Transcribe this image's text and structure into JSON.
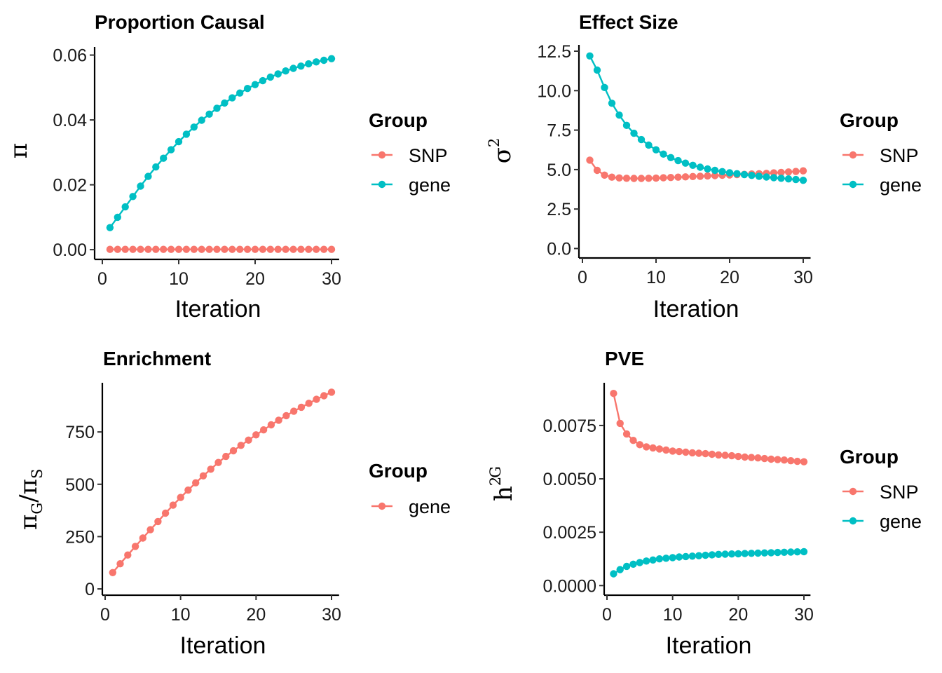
{
  "colors": {
    "SNP": "#F8766D",
    "gene": "#00BFC4"
  },
  "chart_data": [
    {
      "id": "proportion",
      "type": "line",
      "title": "Proportion Causal",
      "xlabel": "Iteration",
      "ylabel": "π",
      "xlim": [
        0,
        31
      ],
      "ylim": [
        -0.003,
        0.0625
      ],
      "xticks": [
        0,
        10,
        20,
        30
      ],
      "xtick_labels": [
        "0",
        "10",
        "20",
        "30"
      ],
      "yticks": [
        0,
        0.02,
        0.04,
        0.06
      ],
      "ytick_labels": [
        "0.00",
        "0.02",
        "0.04",
        "0.06"
      ],
      "legend": {
        "title": "Group",
        "position": "right",
        "entries": [
          "SNP",
          "gene"
        ]
      },
      "x": [
        1,
        2,
        3,
        4,
        5,
        6,
        7,
        8,
        9,
        10,
        11,
        12,
        13,
        14,
        15,
        16,
        17,
        18,
        19,
        20,
        21,
        22,
        23,
        24,
        25,
        26,
        27,
        28,
        29,
        30
      ],
      "series": [
        {
          "name": "SNP",
          "color_key": "SNP",
          "values": [
            0.0001,
            0.0001,
            0.0001,
            0.0001,
            0.0001,
            0.0001,
            0.0001,
            0.0001,
            0.0001,
            0.0001,
            0.0001,
            0.0001,
            0.0001,
            0.0001,
            0.0001,
            0.0001,
            0.0001,
            0.0001,
            0.0001,
            0.0001,
            0.0001,
            0.0001,
            0.0001,
            0.0001,
            0.0001,
            0.0001,
            0.0001,
            0.0001,
            0.0001,
            0.0001
          ]
        },
        {
          "name": "gene",
          "color_key": "gene",
          "values": [
            0.0068,
            0.01,
            0.0132,
            0.0164,
            0.0196,
            0.0226,
            0.0255,
            0.0282,
            0.0308,
            0.0333,
            0.0356,
            0.0378,
            0.0399,
            0.0418,
            0.0436,
            0.0452,
            0.0468,
            0.0483,
            0.0497,
            0.0509,
            0.0521,
            0.0532,
            0.0542,
            0.0551,
            0.0559,
            0.0566,
            0.0573,
            0.0579,
            0.0584,
            0.0589
          ]
        }
      ]
    },
    {
      "id": "effect",
      "type": "line",
      "title": "Effect Size",
      "xlabel": "Iteration",
      "ylabel": "σ",
      "ylabel_sup": "2",
      "xlim": [
        0,
        31
      ],
      "ylim": [
        -0.6,
        12.9
      ],
      "xticks": [
        0,
        10,
        20,
        30
      ],
      "xtick_labels": [
        "0",
        "10",
        "20",
        "30"
      ],
      "yticks": [
        0,
        2.5,
        5,
        7.5,
        10,
        12.5
      ],
      "ytick_labels": [
        "0.0",
        "2.5",
        "5.0",
        "7.5",
        "10.0",
        "12.5"
      ],
      "legend": {
        "title": "Group",
        "position": "right",
        "entries": [
          "SNP",
          "gene"
        ]
      },
      "x": [
        1,
        2,
        3,
        4,
        5,
        6,
        7,
        8,
        9,
        10,
        11,
        12,
        13,
        14,
        15,
        16,
        17,
        18,
        19,
        20,
        21,
        22,
        23,
        24,
        25,
        26,
        27,
        28,
        29,
        30
      ],
      "series": [
        {
          "name": "SNP",
          "color_key": "SNP",
          "values": [
            5.6,
            4.95,
            4.65,
            4.52,
            4.47,
            4.45,
            4.44,
            4.44,
            4.45,
            4.46,
            4.48,
            4.5,
            4.52,
            4.54,
            4.56,
            4.58,
            4.6,
            4.62,
            4.64,
            4.66,
            4.68,
            4.7,
            4.72,
            4.74,
            4.76,
            4.79,
            4.82,
            4.85,
            4.88,
            4.92
          ]
        },
        {
          "name": "gene",
          "color_key": "gene",
          "values": [
            12.2,
            11.3,
            10.2,
            9.2,
            8.45,
            7.8,
            7.3,
            6.9,
            6.55,
            6.25,
            5.98,
            5.76,
            5.57,
            5.41,
            5.27,
            5.15,
            5.04,
            4.95,
            4.87,
            4.8,
            4.74,
            4.68,
            4.63,
            4.58,
            4.53,
            4.49,
            4.45,
            4.41,
            4.37,
            4.32
          ]
        }
      ]
    },
    {
      "id": "enrichment",
      "type": "line",
      "title": "Enrichment",
      "xlabel": "Iteration",
      "ylabel_num": "π",
      "ylabel_num_sub": "G",
      "ylabel_den": "π",
      "ylabel_den_sub": "S",
      "xlim": [
        0,
        31
      ],
      "ylim": [
        -30,
        985
      ],
      "xticks": [
        0,
        10,
        20,
        30
      ],
      "xtick_labels": [
        "0",
        "10",
        "20",
        "30"
      ],
      "yticks": [
        0,
        250,
        500,
        750
      ],
      "ytick_labels": [
        "0",
        "250",
        "500",
        "750"
      ],
      "legend": {
        "title": "Group",
        "position": "right",
        "entries": [
          "gene"
        ]
      },
      "x": [
        1,
        2,
        3,
        4,
        5,
        6,
        7,
        8,
        9,
        10,
        11,
        12,
        13,
        14,
        15,
        16,
        17,
        18,
        19,
        20,
        21,
        22,
        23,
        24,
        25,
        26,
        27,
        28,
        29,
        30
      ],
      "series": [
        {
          "name": "gene",
          "color_key": "SNP",
          "values": [
            78,
            120,
            162,
            203,
            243,
            283,
            322,
            362,
            400,
            437,
            472,
            507,
            540,
            572,
            604,
            633,
            660,
            686,
            711,
            736,
            760,
            784,
            806,
            828,
            849,
            868,
            887,
            906,
            923,
            940
          ]
        }
      ]
    },
    {
      "id": "pve",
      "type": "line",
      "title": "PVE",
      "xlabel": "Iteration",
      "ylabel": "h",
      "ylabel_sup": "2",
      "ylabel_sub": "G",
      "xlim": [
        0,
        31
      ],
      "ylim": [
        -0.00045,
        0.0095
      ],
      "xticks": [
        0,
        10,
        20,
        30
      ],
      "xtick_labels": [
        "0",
        "10",
        "20",
        "30"
      ],
      "yticks": [
        0,
        0.0025,
        0.005,
        0.0075
      ],
      "ytick_labels": [
        "0.0000",
        "0.0025",
        "0.0050",
        "0.0075"
      ],
      "legend": {
        "title": "Group",
        "position": "right",
        "entries": [
          "SNP",
          "gene"
        ]
      },
      "x": [
        1,
        2,
        3,
        4,
        5,
        6,
        7,
        8,
        9,
        10,
        11,
        12,
        13,
        14,
        15,
        16,
        17,
        18,
        19,
        20,
        21,
        22,
        23,
        24,
        25,
        26,
        27,
        28,
        29,
        30
      ],
      "series": [
        {
          "name": "SNP",
          "color_key": "SNP",
          "values": [
            0.009,
            0.0076,
            0.0071,
            0.0068,
            0.0066,
            0.0065,
            0.00645,
            0.0064,
            0.00635,
            0.0063,
            0.00628,
            0.00625,
            0.00622,
            0.0062,
            0.00618,
            0.00615,
            0.00612,
            0.0061,
            0.00608,
            0.00605,
            0.00602,
            0.006,
            0.00598,
            0.00595,
            0.00592,
            0.0059,
            0.00588,
            0.00585,
            0.00582,
            0.0058
          ]
        },
        {
          "name": "gene",
          "color_key": "gene",
          "values": [
            0.00055,
            0.00075,
            0.0009,
            0.001,
            0.00108,
            0.00115,
            0.0012,
            0.00125,
            0.00128,
            0.00131,
            0.00134,
            0.00136,
            0.00138,
            0.0014,
            0.00142,
            0.00144,
            0.00146,
            0.00147,
            0.00148,
            0.00149,
            0.0015,
            0.00151,
            0.00152,
            0.00153,
            0.00154,
            0.00155,
            0.00156,
            0.00157,
            0.00158,
            0.00159
          ]
        }
      ]
    }
  ]
}
